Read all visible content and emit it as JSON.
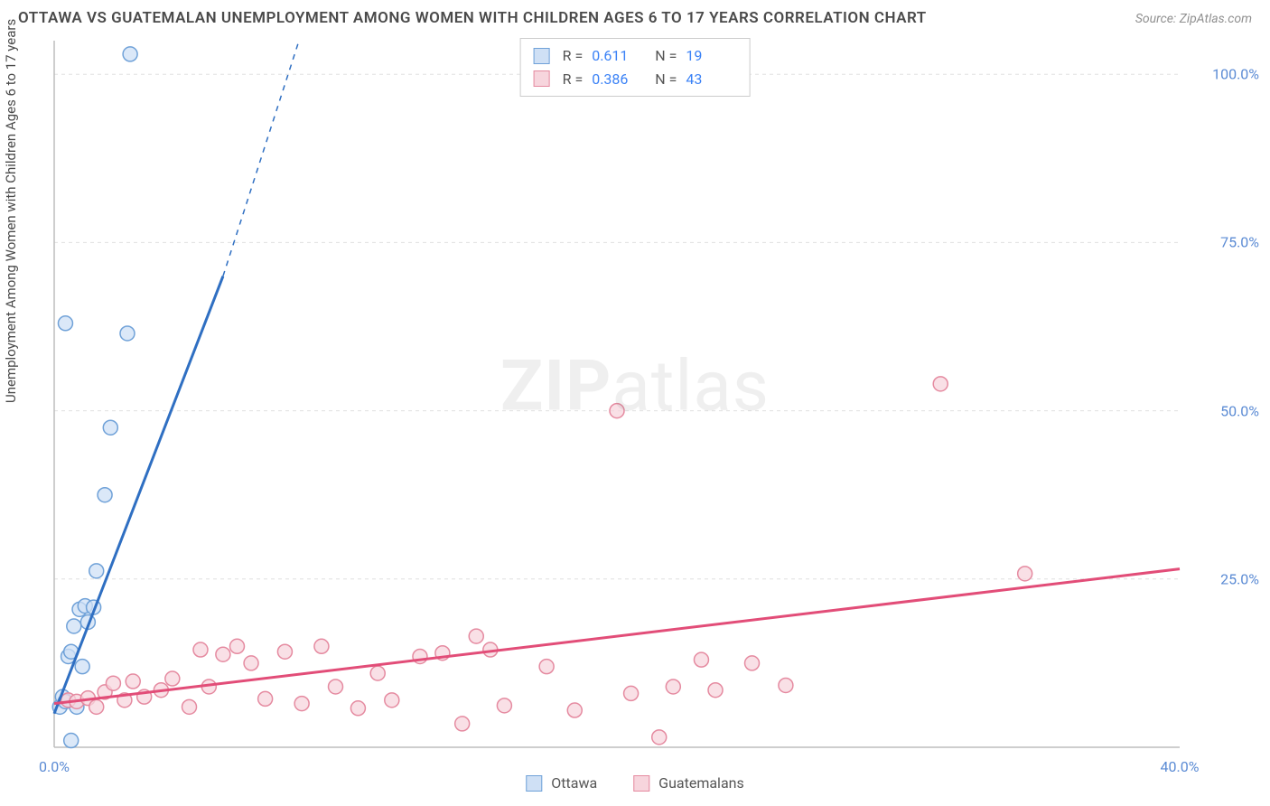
{
  "header": {
    "title": "OTTAWA VS GUATEMALAN UNEMPLOYMENT AMONG WOMEN WITH CHILDREN AGES 6 TO 17 YEARS CORRELATION CHART",
    "source": "Source: ZipAtlas.com"
  },
  "watermark": {
    "bold": "ZIP",
    "light": "atlas"
  },
  "y_axis_label": "Unemployment Among Women with Children Ages 6 to 17 years",
  "chart": {
    "type": "scatter",
    "background_color": "#ffffff",
    "grid_color": "#e0e0e0",
    "axis_line_color": "#bdbdbd",
    "xlim": [
      0,
      40
    ],
    "ylim": [
      0,
      105
    ],
    "yticks": [
      25,
      50,
      75,
      100
    ],
    "ytick_labels": [
      "25.0%",
      "50.0%",
      "75.0%",
      "100.0%"
    ],
    "xticks": [
      0,
      40
    ],
    "xtick_labels": [
      "0.0%",
      "40.0%"
    ],
    "tick_label_color": "#5b8bd4",
    "tick_fontsize": 16,
    "marker_radius": 8,
    "marker_stroke_width": 1.5,
    "trend_line_width": 3,
    "series": [
      {
        "id": "ottawa",
        "label": "Ottawa",
        "fill": "#cfe0f5",
        "stroke": "#6fa1d8",
        "line_color": "#2f6fc2",
        "R": "0.611",
        "N": "19",
        "trend": {
          "x1": 0,
          "y1": 5,
          "x2": 6,
          "y2": 70,
          "dashed_to_x": 8.7,
          "dashed_to_y": 105
        },
        "points": [
          [
            0.2,
            6.0
          ],
          [
            0.3,
            7.5
          ],
          [
            0.4,
            6.8
          ],
          [
            0.5,
            13.5
          ],
          [
            0.6,
            14.2
          ],
          [
            0.7,
            18.0
          ],
          [
            0.8,
            6.0
          ],
          [
            0.9,
            20.5
          ],
          [
            1.1,
            21.0
          ],
          [
            1.2,
            18.6
          ],
          [
            1.4,
            20.8
          ],
          [
            1.5,
            26.2
          ],
          [
            1.8,
            37.5
          ],
          [
            2.0,
            47.5
          ],
          [
            2.6,
            61.5
          ],
          [
            0.4,
            63.0
          ],
          [
            2.7,
            103.0
          ],
          [
            0.6,
            1.0
          ],
          [
            1.0,
            12.0
          ]
        ]
      },
      {
        "id": "guatemalans",
        "label": "Guatemalans",
        "fill": "#f7d5dd",
        "stroke": "#e58aa0",
        "line_color": "#e24d78",
        "R": "0.386",
        "N": "43",
        "trend": {
          "x1": 0,
          "y1": 6.5,
          "x2": 40,
          "y2": 26.5
        },
        "points": [
          [
            0.5,
            7.0
          ],
          [
            0.8,
            6.8
          ],
          [
            1.2,
            7.3
          ],
          [
            1.5,
            6.0
          ],
          [
            1.8,
            8.2
          ],
          [
            2.1,
            9.5
          ],
          [
            2.5,
            7.0
          ],
          [
            2.8,
            9.8
          ],
          [
            3.2,
            7.5
          ],
          [
            3.8,
            8.5
          ],
          [
            4.2,
            10.2
          ],
          [
            4.8,
            6.0
          ],
          [
            5.2,
            14.5
          ],
          [
            5.5,
            9.0
          ],
          [
            6.0,
            13.8
          ],
          [
            6.5,
            15.0
          ],
          [
            7.0,
            12.5
          ],
          [
            7.5,
            7.2
          ],
          [
            8.2,
            14.2
          ],
          [
            8.8,
            6.5
          ],
          [
            9.5,
            15.0
          ],
          [
            10.0,
            9.0
          ],
          [
            10.8,
            5.8
          ],
          [
            11.5,
            11.0
          ],
          [
            12.0,
            7.0
          ],
          [
            13.0,
            13.5
          ],
          [
            13.8,
            14.0
          ],
          [
            14.5,
            3.5
          ],
          [
            15.0,
            16.5
          ],
          [
            15.5,
            14.5
          ],
          [
            16.0,
            6.2
          ],
          [
            17.5,
            12.0
          ],
          [
            18.5,
            5.5
          ],
          [
            20.0,
            50.0
          ],
          [
            20.5,
            8.0
          ],
          [
            21.5,
            1.5
          ],
          [
            23.0,
            13.0
          ],
          [
            23.5,
            8.5
          ],
          [
            24.8,
            12.5
          ],
          [
            26.0,
            9.2
          ],
          [
            31.5,
            54.0
          ],
          [
            34.5,
            25.8
          ],
          [
            22.0,
            9.0
          ]
        ]
      }
    ]
  },
  "stats_box": {
    "R_label": "R  =",
    "N_label": "N  ="
  },
  "legend": {
    "items": [
      "ottawa",
      "guatemalans"
    ]
  }
}
